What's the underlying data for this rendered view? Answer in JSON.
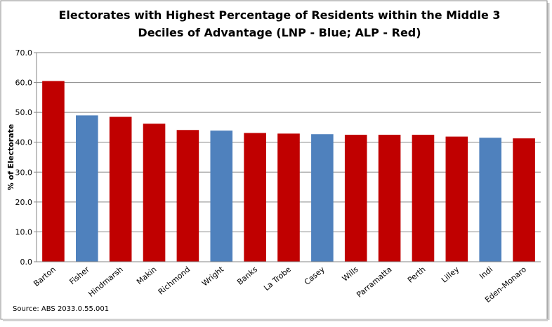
{
  "chart_data": {
    "type": "bar",
    "title": [
      "Electorates with Highest Percentage of Residents within the Middle 3",
      "Deciles of Advantage (LNP - Blue; ALP - Red)"
    ],
    "y_label": "% of Electorate",
    "source": "Source: ABS 2033.0.55.001",
    "categories": [
      "Barton",
      "Fisher",
      "Hindmarsh",
      "Makin",
      "Richmond",
      "Wright",
      "Banks",
      "La Trobe",
      "Casey",
      "Wills",
      "Parramatta",
      "Perth",
      "Lilley",
      "Indi",
      "Eden-Monaro"
    ],
    "values": [
      60.5,
      49.0,
      48.5,
      46.2,
      44.1,
      43.9,
      43.1,
      42.9,
      42.7,
      42.5,
      42.5,
      42.5,
      41.9,
      41.5,
      41.3
    ],
    "colors": [
      "#C00000",
      "#4F81BD",
      "#C00000",
      "#C00000",
      "#C00000",
      "#4F81BD",
      "#C00000",
      "#C00000",
      "#4F81BD",
      "#C00000",
      "#C00000",
      "#C00000",
      "#C00000",
      "#4F81BD",
      "#C00000"
    ],
    "ylim": [
      0,
      70
    ],
    "yticks": [
      {
        "value": 0,
        "label": "0.0"
      },
      {
        "value": 10,
        "label": "10.0"
      },
      {
        "value": 20,
        "label": "20.0"
      },
      {
        "value": 30,
        "label": "30.0"
      },
      {
        "value": 40,
        "label": "40.0"
      },
      {
        "value": 50,
        "label": "50.0"
      },
      {
        "value": 60,
        "label": "60.0"
      },
      {
        "value": 70,
        "label": "70.0"
      }
    ],
    "grid": true
  }
}
